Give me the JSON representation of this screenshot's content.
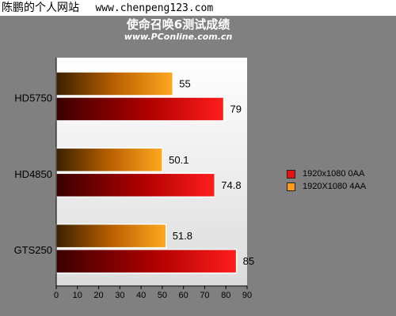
{
  "watermark": {
    "name": "陈鹏的个人网站",
    "site": "www.chenpeng123.com"
  },
  "chart_data": {
    "type": "bar",
    "orientation": "horizontal",
    "title": "使命召唤6测试成绩",
    "subtitle": "www.PConline.com.cn",
    "categories": [
      "HD5750",
      "HD4850",
      "GTS250"
    ],
    "series": [
      {
        "name": "1920x1080 0AA",
        "values": [
          79,
          74.8,
          85
        ],
        "color": "#e81010"
      },
      {
        "name": "1920X1080 4AA",
        "values": [
          55,
          50.1,
          51.8
        ],
        "color": "#ff9a1a"
      }
    ],
    "value_labels": [
      [
        "79",
        "74.8",
        "85"
      ],
      [
        "55",
        "50.1",
        "51.8"
      ]
    ],
    "xlim": [
      0,
      90
    ],
    "xticks": [
      "0",
      "10",
      "20",
      "30",
      "40",
      "50",
      "60",
      "70",
      "80",
      "90"
    ],
    "grid": false,
    "legend_position": "right"
  },
  "colors": {
    "background": "#808080",
    "plot_area": "#ffffff",
    "axis": "#000000"
  }
}
